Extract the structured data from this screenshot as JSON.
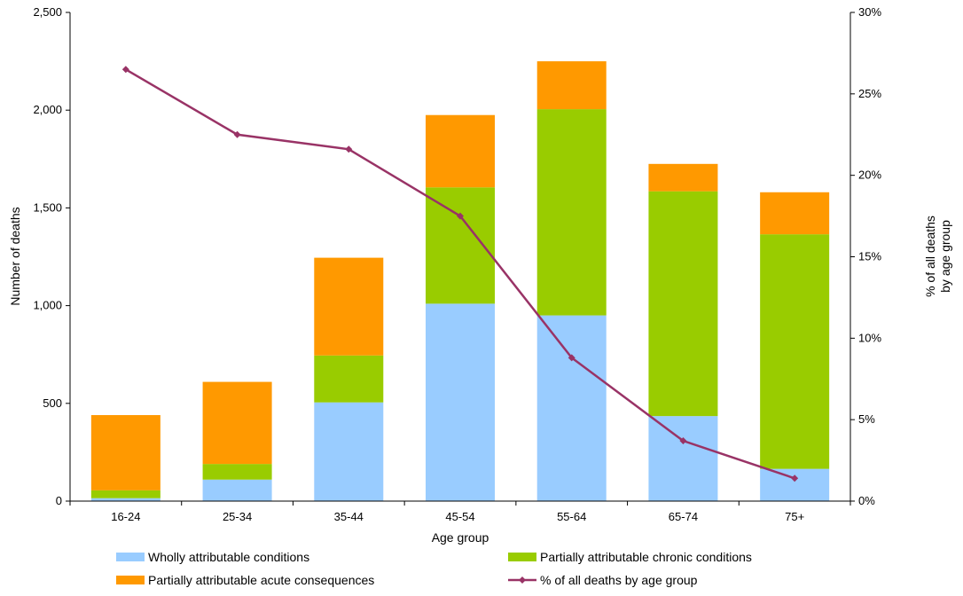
{
  "chart_data": {
    "type": "bar",
    "stacked": true,
    "categories": [
      "16-24",
      "25-34",
      "35-44",
      "45-54",
      "55-64",
      "65-74",
      "75+"
    ],
    "series": [
      {
        "name": "Wholly attributable conditions",
        "type": "bar",
        "color": "#99ccff",
        "values": [
          15,
          110,
          505,
          1010,
          950,
          435,
          165
        ]
      },
      {
        "name": "Partially attributable chronic conditions",
        "type": "bar",
        "color": "#99cc00",
        "values": [
          40,
          80,
          240,
          595,
          1055,
          1150,
          1200
        ]
      },
      {
        "name": "Partially attributable acute consequences",
        "type": "bar",
        "color": "#ff9900",
        "values": [
          385,
          420,
          500,
          370,
          245,
          140,
          215
        ]
      },
      {
        "name": "% of all deaths by age group",
        "type": "line",
        "axis": "right",
        "color": "#993366",
        "values": [
          26.5,
          22.5,
          21.6,
          17.5,
          8.8,
          3.7,
          1.4
        ]
      }
    ],
    "xlabel": "Age group",
    "ylabel": "Number of deaths",
    "ylabel_right": [
      "% of all deaths",
      "by age group"
    ],
    "ylim": [
      0,
      2500
    ],
    "y_ticks": [
      "0",
      "500",
      "1,000",
      "1,500",
      "2,000",
      "2,500"
    ],
    "ylim_right": [
      0,
      30
    ],
    "y_ticks_right": [
      "0%",
      "5%",
      "10%",
      "15%",
      "20%",
      "25%",
      "30%"
    ],
    "grid": false,
    "legend_position": "bottom"
  }
}
